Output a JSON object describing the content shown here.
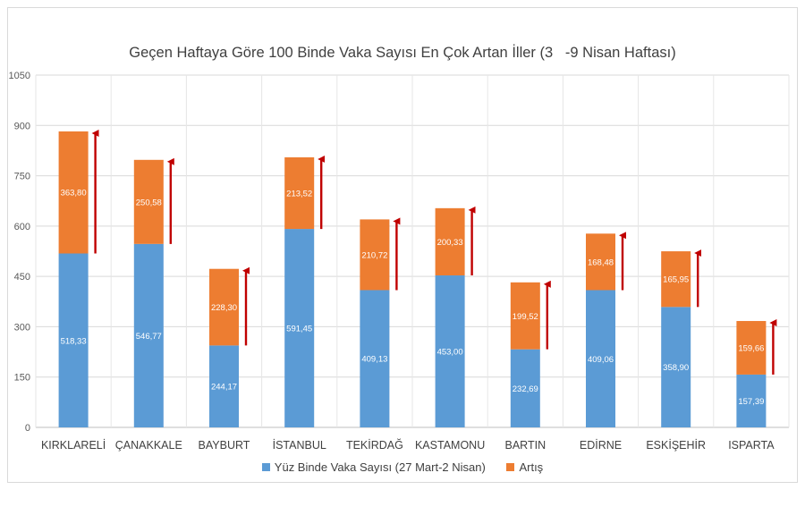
{
  "chart_data": {
    "type": "bar",
    "stacked": true,
    "title": "Geçen Haftaya Göre 100 Binde Vaka Sayısı En Çok Artan İller (3   -9 Nisan Haftası)",
    "categories": [
      "KIRKLARELİ",
      "ÇANAKKALE",
      "BAYBURT",
      "İSTANBUL",
      "TEKİRDAĞ",
      "KASTAMONU",
      "BARTIN",
      "EDİRNE",
      "ESKİŞEHİR",
      "ISPARTA"
    ],
    "series": [
      {
        "name": "Yüz Binde Vaka Sayısı (27 Mart-2 Nisan)",
        "color": "#5b9bd5",
        "values": [
          518.33,
          546.77,
          244.17,
          591.45,
          409.13,
          453.0,
          232.69,
          409.06,
          358.9,
          157.39
        ],
        "labels": [
          "518,33",
          "546,77",
          "244,17",
          "591,45",
          "409,13",
          "453,00",
          "232,69",
          "409,06",
          "358,90",
          "157,39"
        ]
      },
      {
        "name": "Artış",
        "color": "#ed7d31",
        "values": [
          363.8,
          250.58,
          228.3,
          213.52,
          210.72,
          200.33,
          199.52,
          168.48,
          165.95,
          159.66
        ],
        "labels": [
          "363,80",
          "250,58",
          "228,30",
          "213,52",
          "210,72",
          "200,33",
          "199,52",
          "168,48",
          "165,95",
          "159,66"
        ]
      }
    ],
    "yticks": [
      "0",
      "150",
      "300",
      "450",
      "600",
      "750",
      "900",
      "1050"
    ],
    "ylim": [
      0,
      1050
    ],
    "grid": true,
    "legend_position": "bottom",
    "arrow_color": "#c00000"
  }
}
